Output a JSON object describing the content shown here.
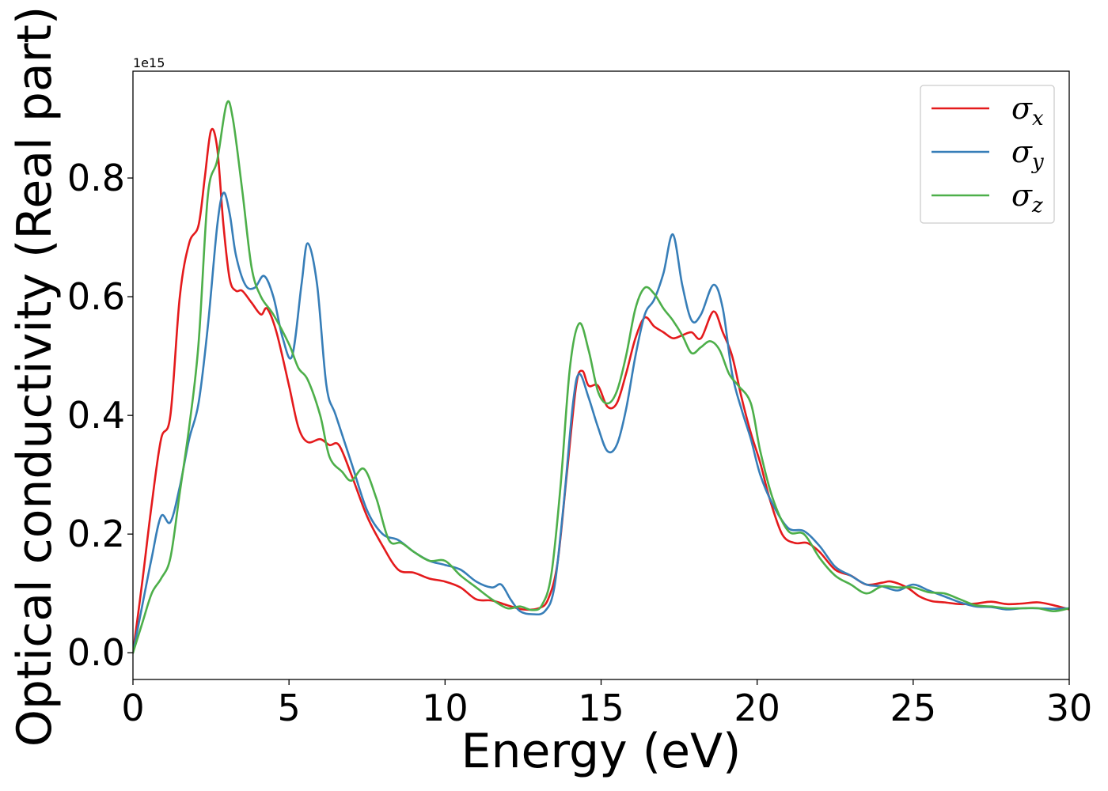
{
  "chart_data": {
    "type": "line",
    "xlabel": "Energy (eV)",
    "ylabel": "Optical conductivity (Real part)",
    "y_offset_label": "1e15",
    "xlim": [
      0,
      30
    ],
    "ylim": [
      -0.045,
      0.98
    ],
    "xticks": [
      0,
      5,
      10,
      15,
      20,
      25,
      30
    ],
    "xtick_labels": [
      "0",
      "5",
      "10",
      "15",
      "20",
      "25",
      "30"
    ],
    "yticks": [
      0.0,
      0.2,
      0.4,
      0.6,
      0.8
    ],
    "ytick_labels": [
      "0.0",
      "0.2",
      "0.4",
      "0.6",
      "0.8"
    ],
    "grid": false,
    "legend_position": "top-right",
    "series": [
      {
        "name": "σx",
        "symbol": "σ",
        "subscript": "x",
        "color": "#e41a1c",
        "points": [
          [
            0,
            0
          ],
          [
            0.3,
            0.12
          ],
          [
            0.6,
            0.25
          ],
          [
            0.9,
            0.36
          ],
          [
            1.2,
            0.4
          ],
          [
            1.5,
            0.6
          ],
          [
            1.8,
            0.69
          ],
          [
            2.1,
            0.72
          ],
          [
            2.3,
            0.8
          ],
          [
            2.5,
            0.88
          ],
          [
            2.7,
            0.85
          ],
          [
            2.9,
            0.72
          ],
          [
            3.1,
            0.63
          ],
          [
            3.3,
            0.61
          ],
          [
            3.5,
            0.61
          ],
          [
            3.8,
            0.59
          ],
          [
            4.1,
            0.57
          ],
          [
            4.3,
            0.58
          ],
          [
            4.6,
            0.54
          ],
          [
            5.0,
            0.45
          ],
          [
            5.3,
            0.38
          ],
          [
            5.6,
            0.355
          ],
          [
            6.0,
            0.36
          ],
          [
            6.3,
            0.35
          ],
          [
            6.6,
            0.35
          ],
          [
            7.0,
            0.3
          ],
          [
            7.5,
            0.23
          ],
          [
            8.0,
            0.18
          ],
          [
            8.5,
            0.14
          ],
          [
            9.0,
            0.135
          ],
          [
            9.5,
            0.125
          ],
          [
            10.0,
            0.12
          ],
          [
            10.5,
            0.11
          ],
          [
            11.0,
            0.09
          ],
          [
            11.5,
            0.088
          ],
          [
            12.0,
            0.08
          ],
          [
            12.5,
            0.073
          ],
          [
            13.0,
            0.075
          ],
          [
            13.3,
            0.09
          ],
          [
            13.6,
            0.15
          ],
          [
            13.9,
            0.3
          ],
          [
            14.2,
            0.45
          ],
          [
            14.4,
            0.475
          ],
          [
            14.6,
            0.45
          ],
          [
            14.9,
            0.45
          ],
          [
            15.2,
            0.415
          ],
          [
            15.5,
            0.42
          ],
          [
            15.8,
            0.47
          ],
          [
            16.1,
            0.53
          ],
          [
            16.4,
            0.565
          ],
          [
            16.7,
            0.55
          ],
          [
            17.0,
            0.54
          ],
          [
            17.3,
            0.53
          ],
          [
            17.6,
            0.535
          ],
          [
            17.9,
            0.54
          ],
          [
            18.2,
            0.53
          ],
          [
            18.6,
            0.575
          ],
          [
            18.9,
            0.54
          ],
          [
            19.2,
            0.5
          ],
          [
            19.5,
            0.43
          ],
          [
            19.8,
            0.37
          ],
          [
            20.1,
            0.32
          ],
          [
            20.4,
            0.26
          ],
          [
            20.8,
            0.2
          ],
          [
            21.2,
            0.185
          ],
          [
            21.6,
            0.185
          ],
          [
            22.0,
            0.17
          ],
          [
            22.5,
            0.14
          ],
          [
            23.0,
            0.13
          ],
          [
            23.5,
            0.115
          ],
          [
            24.0,
            0.118
          ],
          [
            24.3,
            0.12
          ],
          [
            24.8,
            0.11
          ],
          [
            25.2,
            0.095
          ],
          [
            25.6,
            0.087
          ],
          [
            26.0,
            0.085
          ],
          [
            26.5,
            0.082
          ],
          [
            27.0,
            0.083
          ],
          [
            27.5,
            0.086
          ],
          [
            28.0,
            0.082
          ],
          [
            28.5,
            0.083
          ],
          [
            29.0,
            0.085
          ],
          [
            29.5,
            0.08
          ],
          [
            30.0,
            0.073
          ]
        ]
      },
      {
        "name": "σy",
        "symbol": "σ",
        "subscript": "y",
        "color": "#377eb8",
        "points": [
          [
            0,
            0
          ],
          [
            0.3,
            0.08
          ],
          [
            0.6,
            0.16
          ],
          [
            0.9,
            0.23
          ],
          [
            1.2,
            0.22
          ],
          [
            1.5,
            0.28
          ],
          [
            1.8,
            0.36
          ],
          [
            2.1,
            0.42
          ],
          [
            2.4,
            0.55
          ],
          [
            2.7,
            0.72
          ],
          [
            2.9,
            0.775
          ],
          [
            3.1,
            0.74
          ],
          [
            3.3,
            0.67
          ],
          [
            3.6,
            0.62
          ],
          [
            3.9,
            0.615
          ],
          [
            4.2,
            0.635
          ],
          [
            4.5,
            0.6
          ],
          [
            4.8,
            0.53
          ],
          [
            5.1,
            0.5
          ],
          [
            5.4,
            0.62
          ],
          [
            5.6,
            0.69
          ],
          [
            5.9,
            0.62
          ],
          [
            6.2,
            0.45
          ],
          [
            6.5,
            0.4
          ],
          [
            7.0,
            0.32
          ],
          [
            7.5,
            0.24
          ],
          [
            8.0,
            0.2
          ],
          [
            8.5,
            0.19
          ],
          [
            9.0,
            0.17
          ],
          [
            9.5,
            0.155
          ],
          [
            10.0,
            0.148
          ],
          [
            10.5,
            0.14
          ],
          [
            11.0,
            0.12
          ],
          [
            11.5,
            0.11
          ],
          [
            11.8,
            0.115
          ],
          [
            12.1,
            0.09
          ],
          [
            12.4,
            0.07
          ],
          [
            12.8,
            0.065
          ],
          [
            13.2,
            0.07
          ],
          [
            13.5,
            0.11
          ],
          [
            13.8,
            0.25
          ],
          [
            14.1,
            0.42
          ],
          [
            14.3,
            0.47
          ],
          [
            14.6,
            0.43
          ],
          [
            14.9,
            0.38
          ],
          [
            15.2,
            0.34
          ],
          [
            15.5,
            0.35
          ],
          [
            15.8,
            0.41
          ],
          [
            16.1,
            0.5
          ],
          [
            16.4,
            0.57
          ],
          [
            16.7,
            0.595
          ],
          [
            17.0,
            0.64
          ],
          [
            17.3,
            0.705
          ],
          [
            17.6,
            0.62
          ],
          [
            17.9,
            0.56
          ],
          [
            18.2,
            0.57
          ],
          [
            18.6,
            0.62
          ],
          [
            18.9,
            0.58
          ],
          [
            19.2,
            0.47
          ],
          [
            19.5,
            0.41
          ],
          [
            19.8,
            0.36
          ],
          [
            20.1,
            0.3
          ],
          [
            20.5,
            0.25
          ],
          [
            21.0,
            0.21
          ],
          [
            21.5,
            0.205
          ],
          [
            22.0,
            0.18
          ],
          [
            22.5,
            0.145
          ],
          [
            23.0,
            0.13
          ],
          [
            23.5,
            0.115
          ],
          [
            24.0,
            0.112
          ],
          [
            24.5,
            0.105
          ],
          [
            25.0,
            0.115
          ],
          [
            25.5,
            0.105
          ],
          [
            26.0,
            0.095
          ],
          [
            26.5,
            0.085
          ],
          [
            27.0,
            0.078
          ],
          [
            27.5,
            0.077
          ],
          [
            28.0,
            0.073
          ],
          [
            28.5,
            0.075
          ],
          [
            29.0,
            0.075
          ],
          [
            29.5,
            0.074
          ],
          [
            30.0,
            0.075
          ]
        ]
      },
      {
        "name": "σz",
        "symbol": "σ",
        "subscript": "z",
        "color": "#4daf4a",
        "points": [
          [
            0,
            0
          ],
          [
            0.3,
            0.05
          ],
          [
            0.6,
            0.1
          ],
          [
            0.9,
            0.125
          ],
          [
            1.2,
            0.16
          ],
          [
            1.5,
            0.27
          ],
          [
            1.8,
            0.38
          ],
          [
            2.1,
            0.52
          ],
          [
            2.4,
            0.77
          ],
          [
            2.7,
            0.83
          ],
          [
            3.0,
            0.925
          ],
          [
            3.2,
            0.9
          ],
          [
            3.5,
            0.78
          ],
          [
            3.8,
            0.65
          ],
          [
            4.1,
            0.6
          ],
          [
            4.5,
            0.57
          ],
          [
            5.0,
            0.52
          ],
          [
            5.3,
            0.48
          ],
          [
            5.6,
            0.46
          ],
          [
            6.0,
            0.4
          ],
          [
            6.3,
            0.33
          ],
          [
            6.7,
            0.305
          ],
          [
            7.0,
            0.29
          ],
          [
            7.4,
            0.31
          ],
          [
            7.8,
            0.26
          ],
          [
            8.2,
            0.19
          ],
          [
            8.6,
            0.185
          ],
          [
            9.0,
            0.17
          ],
          [
            9.5,
            0.155
          ],
          [
            10.0,
            0.155
          ],
          [
            10.5,
            0.13
          ],
          [
            11.0,
            0.11
          ],
          [
            11.5,
            0.09
          ],
          [
            12.0,
            0.075
          ],
          [
            12.4,
            0.078
          ],
          [
            12.8,
            0.072
          ],
          [
            13.1,
            0.08
          ],
          [
            13.4,
            0.13
          ],
          [
            13.7,
            0.28
          ],
          [
            14.0,
            0.48
          ],
          [
            14.3,
            0.555
          ],
          [
            14.6,
            0.51
          ],
          [
            14.9,
            0.44
          ],
          [
            15.2,
            0.42
          ],
          [
            15.5,
            0.44
          ],
          [
            15.8,
            0.5
          ],
          [
            16.1,
            0.58
          ],
          [
            16.4,
            0.615
          ],
          [
            16.7,
            0.605
          ],
          [
            17.0,
            0.58
          ],
          [
            17.3,
            0.56
          ],
          [
            17.6,
            0.535
          ],
          [
            17.9,
            0.505
          ],
          [
            18.2,
            0.515
          ],
          [
            18.5,
            0.525
          ],
          [
            18.8,
            0.51
          ],
          [
            19.1,
            0.47
          ],
          [
            19.4,
            0.45
          ],
          [
            19.8,
            0.42
          ],
          [
            20.1,
            0.34
          ],
          [
            20.5,
            0.26
          ],
          [
            21.0,
            0.205
          ],
          [
            21.5,
            0.2
          ],
          [
            22.0,
            0.16
          ],
          [
            22.5,
            0.13
          ],
          [
            23.0,
            0.115
          ],
          [
            23.5,
            0.1
          ],
          [
            24.0,
            0.112
          ],
          [
            24.5,
            0.11
          ],
          [
            25.0,
            0.11
          ],
          [
            25.5,
            0.102
          ],
          [
            26.0,
            0.1
          ],
          [
            26.5,
            0.09
          ],
          [
            27.0,
            0.08
          ],
          [
            27.5,
            0.078
          ],
          [
            28.0,
            0.075
          ],
          [
            28.5,
            0.075
          ],
          [
            29.0,
            0.075
          ],
          [
            29.5,
            0.07
          ],
          [
            30.0,
            0.075
          ]
        ]
      }
    ]
  }
}
